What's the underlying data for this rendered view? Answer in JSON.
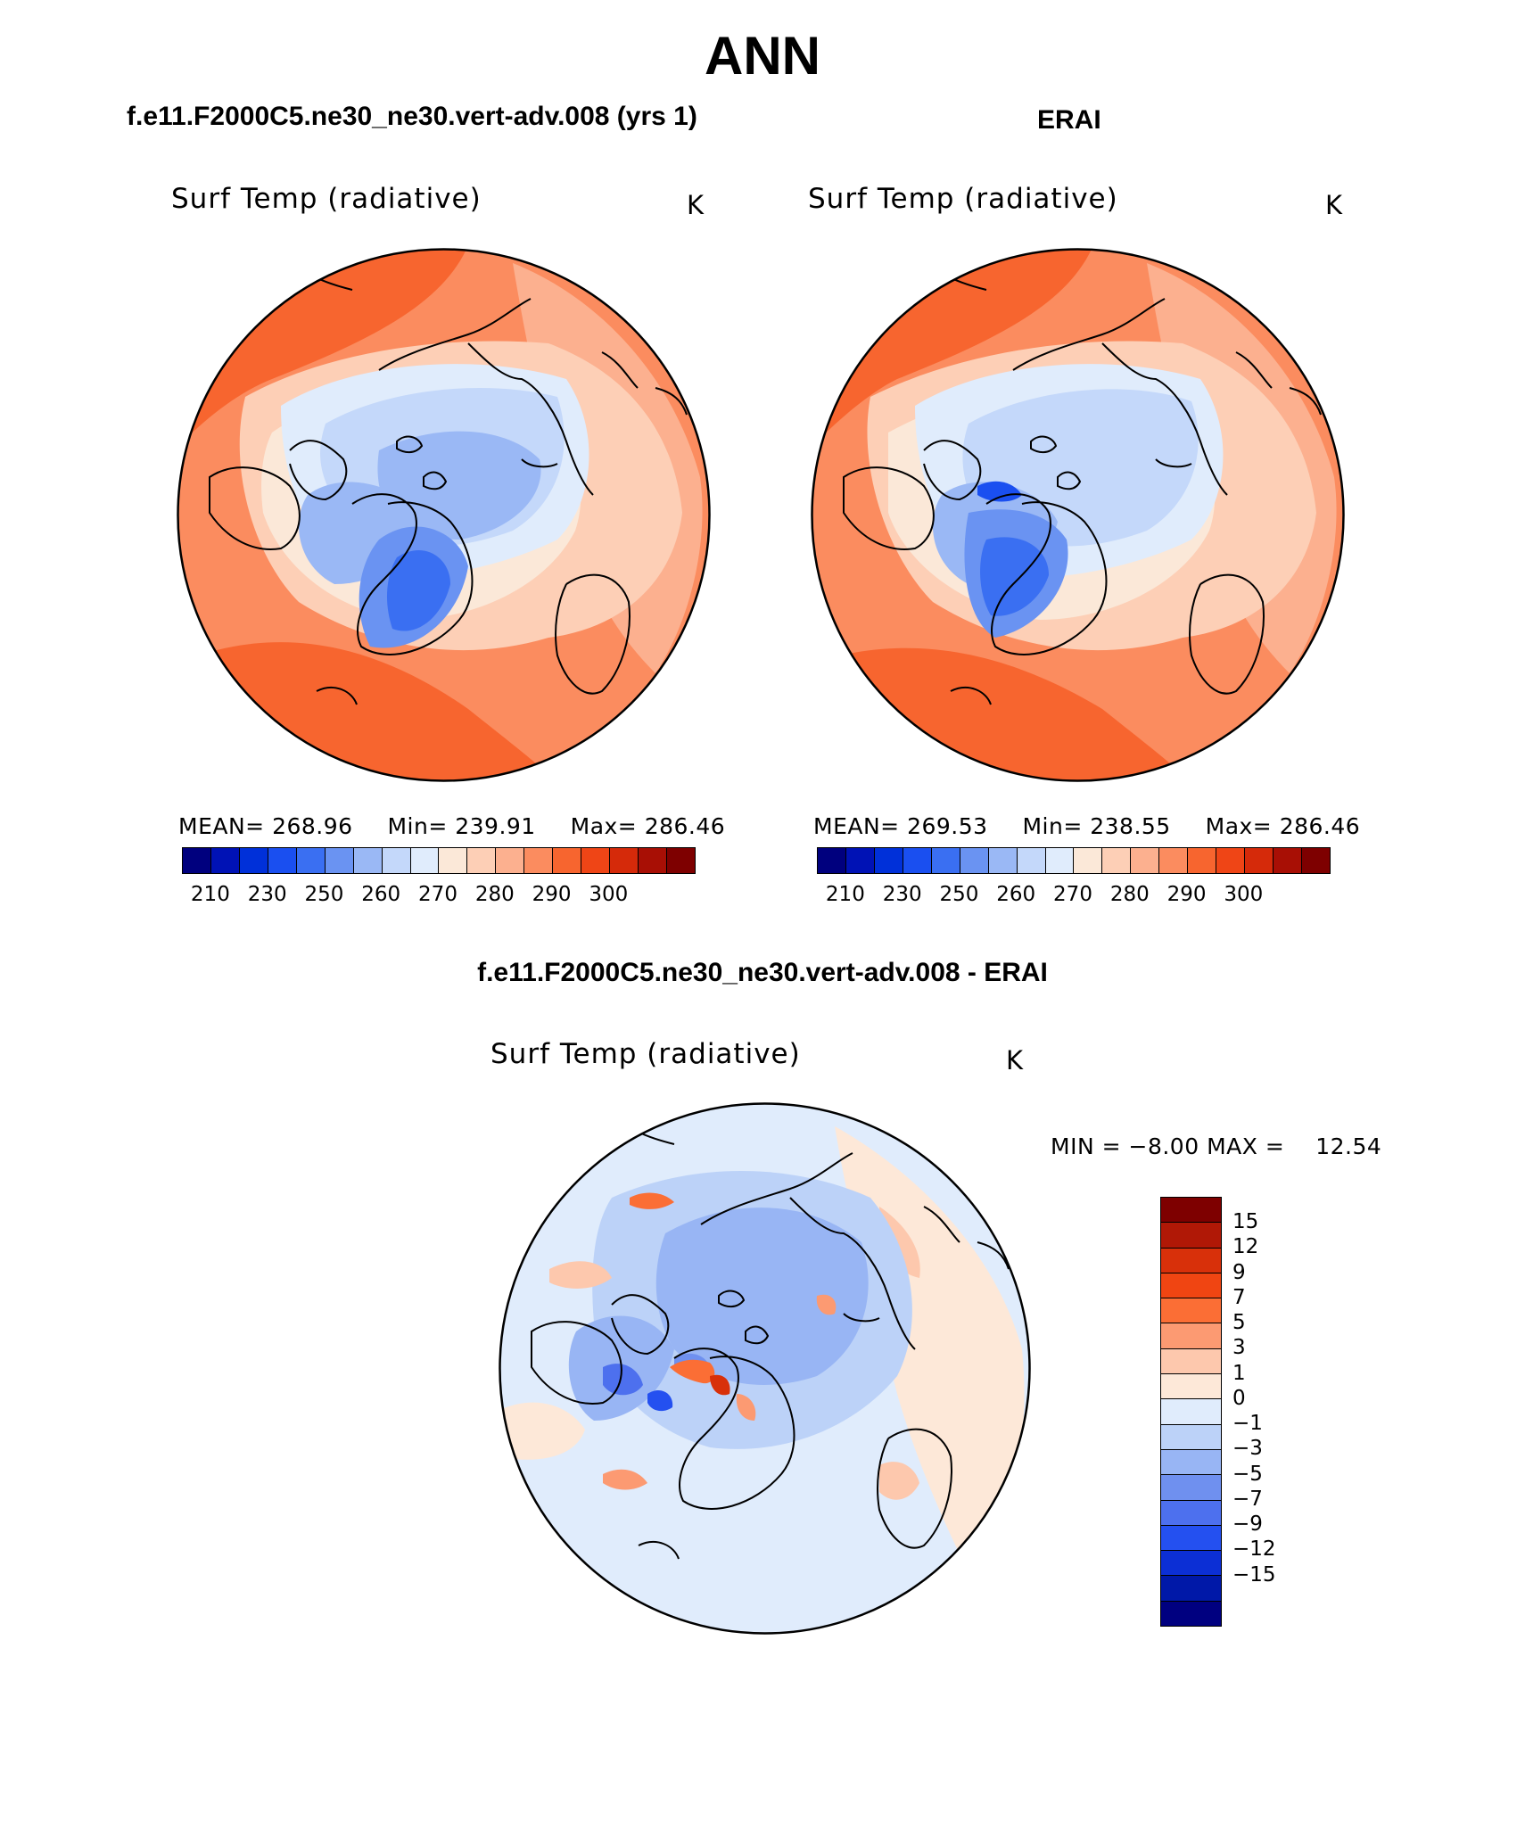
{
  "figure": {
    "title": "ANN",
    "diff_title": "f.e11.F2000C5.ne30_ne30.vert-adv.008 - ERAI"
  },
  "panels": [
    {
      "case": "f.e11.F2000C5.ne30_ne30.vert-adv.008 (yrs 1)",
      "variable": "Surf Temp (radiative)",
      "units": "K",
      "mean_label": "MEAN=",
      "mean": "268.96",
      "min_label": "Min=",
      "min": "239.91",
      "max_label": "Max=",
      "max": "286.46"
    },
    {
      "case": "ERAI",
      "variable": "Surf Temp (radiative)",
      "units": "K",
      "mean_label": "MEAN=",
      "mean": "269.53",
      "min_label": "Min=",
      "min": "238.55",
      "max_label": "Max=",
      "max": "286.46"
    }
  ],
  "diff_panel": {
    "variable": "Surf Temp (radiative)",
    "units": "K",
    "min_label": "MIN =",
    "min": "−8.00",
    "max_label": "MAX =",
    "max": "12.54"
  },
  "abs_colorbar": {
    "colors": [
      "#00007e",
      "#0012b5",
      "#0030d9",
      "#1a4ff0",
      "#3a6ff2",
      "#6a93f2",
      "#9ab8f5",
      "#c4d8fa",
      "#e0ecfc",
      "#fbe8d8",
      "#fdcfb6",
      "#fcb08f",
      "#fb8c5f",
      "#f7652f",
      "#ef4516",
      "#d52a0a",
      "#a80f05",
      "#7e0000"
    ],
    "labels": [
      "210",
      "230",
      "250",
      "260",
      "270",
      "280",
      "290",
      "300"
    ]
  },
  "diff_colorbar": {
    "colors": [
      "#7e0000",
      "#b01806",
      "#d8300a",
      "#f04512",
      "#fb6e35",
      "#fc9a72",
      "#fdc8ad",
      "#fde8d8",
      "#e0ecfc",
      "#bcd2f8",
      "#98b5f4",
      "#6f90ef",
      "#4d70ee",
      "#2450f0",
      "#0c2fd5",
      "#0018a8",
      "#000080"
    ],
    "labels": [
      "15",
      "12",
      "9",
      "7",
      "5",
      "3",
      "1",
      "0",
      "−1",
      "−3",
      "−5",
      "−7",
      "−9",
      "−12",
      "−15"
    ]
  }
}
